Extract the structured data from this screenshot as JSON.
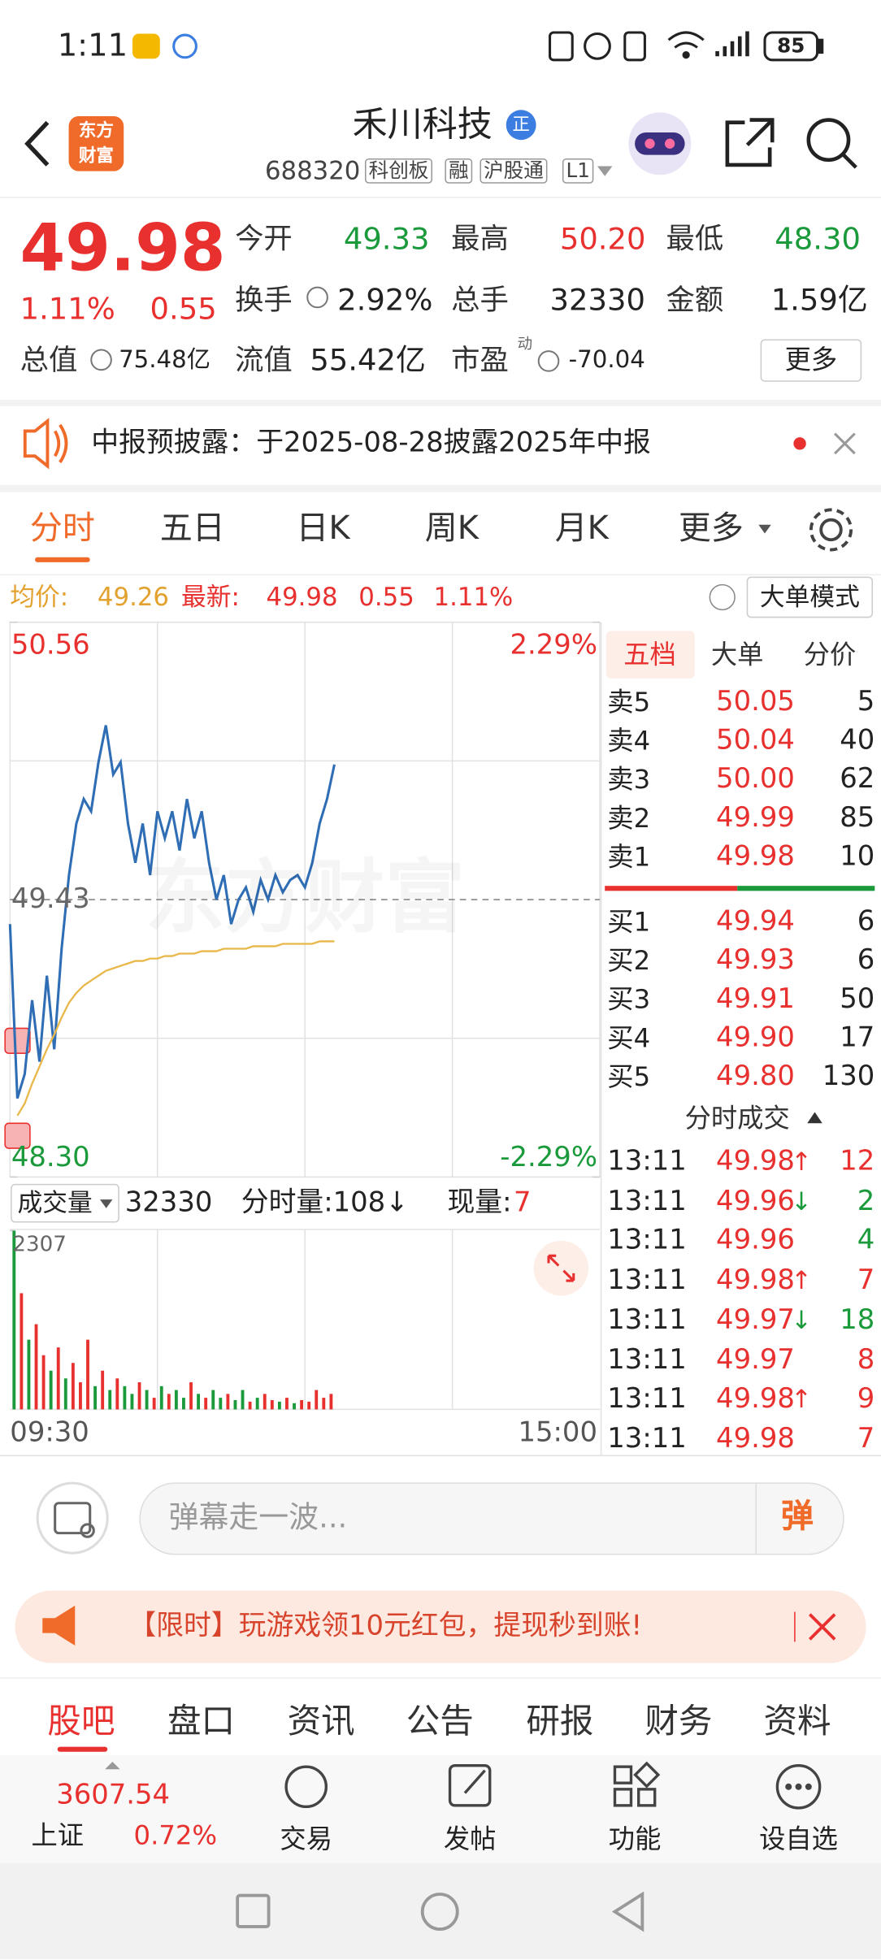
{
  "status_bar": {
    "time": "1:11",
    "battery": "85"
  },
  "header": {
    "logo": [
      "东方",
      "财富"
    ],
    "title": "禾川科技",
    "badge": "正",
    "code": "688320",
    "tags": [
      "科创板",
      "融",
      "沪股通",
      "L1"
    ]
  },
  "quote": {
    "price": "49.98",
    "change_pct": "1.11%",
    "change": "0.55",
    "open": {
      "label": "今开",
      "value": "49.33"
    },
    "high": {
      "label": "最高",
      "value": "50.20"
    },
    "low": {
      "label": "最低",
      "value": "48.30"
    },
    "turnover": {
      "label": "换手",
      "value": "2.92%"
    },
    "volume": {
      "label": "总手",
      "value": "32330"
    },
    "amount": {
      "label": "金额",
      "value": "1.59亿"
    },
    "market_cap": {
      "label": "总值",
      "value": "75.48亿"
    },
    "float_cap": {
      "label": "流值",
      "value": "55.42亿"
    },
    "pe": {
      "label": "市盈",
      "sup": "动",
      "value": "-70.04"
    },
    "more": "更多"
  },
  "notice": {
    "text": "中报预披露：于2025-08-28披露2025年中报"
  },
  "tabs": [
    "分时",
    "五日",
    "日K",
    "周K",
    "月K",
    "更多"
  ],
  "info_row": {
    "avg_label": "均价:",
    "avg": "49.26",
    "latest_label": "最新:",
    "latest": "49.98",
    "change": "0.55",
    "change_pct": "1.11%",
    "mode_button": "大单模式"
  },
  "intraday": {
    "type": "line",
    "watermark": "东方财富",
    "ylim": [
      48.3,
      50.56
    ],
    "yticks": [
      50.56,
      49.43,
      {
        "value": 48.3,
        "label": "48.30"
      }
    ],
    "y2lim": [
      -2.29,
      2.29
    ],
    "y2ticks": [
      {
        "value": 2.29,
        "label": "2.29%"
      },
      {
        "value": -2.29,
        "label": "-2.29%"
      }
    ],
    "x_labels": [
      "09:30",
      "15:00"
    ],
    "series": [
      {
        "color": "#2f6db5",
        "values": [
          49.33,
          48.62,
          48.72,
          49.02,
          48.77,
          49.12,
          48.82,
          49.23,
          49.53,
          49.74,
          49.84,
          49.79,
          49.99,
          50.14,
          49.94,
          49.99,
          49.74,
          49.58,
          49.74,
          49.53,
          49.79,
          49.68,
          49.79,
          49.63,
          49.84,
          49.68,
          49.79,
          49.58,
          49.43,
          49.53,
          49.33,
          49.43,
          49.48,
          49.38,
          49.51,
          49.43,
          49.53,
          49.46,
          49.51,
          49.53,
          49.48,
          49.58,
          49.74,
          49.84,
          49.98
        ]
      },
      {
        "color": "#e8b84a",
        "values": [
          null,
          48.55,
          48.6,
          48.68,
          48.75,
          48.82,
          48.88,
          48.95,
          49.01,
          49.05,
          49.08,
          49.1,
          49.12,
          49.14,
          49.15,
          49.16,
          49.17,
          49.18,
          49.18,
          49.19,
          49.19,
          49.2,
          49.2,
          49.21,
          49.21,
          49.21,
          49.22,
          49.22,
          49.22,
          49.23,
          49.23,
          49.23,
          49.23,
          49.24,
          49.24,
          49.24,
          49.24,
          49.25,
          49.25,
          49.25,
          49.25,
          49.25,
          49.26,
          49.26,
          49.26
        ]
      }
    ]
  },
  "volume_panel": {
    "label": "成交量",
    "total": "32330",
    "minute_vol": "分时量:108↓",
    "current_label": "现量:",
    "current": "7",
    "ylim": [
      0,
      2307
    ],
    "yticks": [
      2307
    ],
    "values": [
      2307,
      1500,
      900,
      1100,
      700,
      500,
      800,
      400,
      600,
      350,
      900,
      300,
      500,
      250,
      400,
      300,
      200,
      350,
      250,
      150,
      300,
      200,
      250,
      150,
      350,
      200,
      150,
      250,
      150,
      200,
      120,
      250,
      100,
      150,
      200,
      120,
      100,
      150,
      80,
      120,
      100,
      250,
      150,
      200
    ],
    "colors": [
      "#1a9a3a",
      "#e8302f",
      "#1a9a3a",
      "#e8302f",
      "#e8302f",
      "#1a9a3a",
      "#e8302f",
      "#1a9a3a",
      "#e8302f",
      "#e8302f",
      "#e8302f",
      "#1a9a3a",
      "#e8302f",
      "#1a9a3a",
      "#e8302f",
      "#1a9a3a",
      "#1a9a3a",
      "#e8302f",
      "#1a9a3a",
      "#e8302f",
      "#1a9a3a",
      "#e8302f",
      "#1a9a3a",
      "#1a9a3a",
      "#e8302f",
      "#1a9a3a",
      "#e8302f",
      "#1a9a3a",
      "#1a9a3a",
      "#e8302f",
      "#1a9a3a",
      "#1a9a3a",
      "#e8302f",
      "#1a9a3a",
      "#e8302f",
      "#e8302f",
      "#1a9a3a",
      "#e8302f",
      "#1a9a3a",
      "#e8302f",
      "#e8302f",
      "#e8302f",
      "#e8302f",
      "#e8302f"
    ]
  },
  "order_book": {
    "tabs": [
      "五档",
      "大单",
      "分价"
    ],
    "asks": [
      {
        "label": "卖5",
        "price": "50.05",
        "vol": "5"
      },
      {
        "label": "卖4",
        "price": "50.04",
        "vol": "40"
      },
      {
        "label": "卖3",
        "price": "50.00",
        "vol": "62"
      },
      {
        "label": "卖2",
        "price": "49.99",
        "vol": "85"
      },
      {
        "label": "卖1",
        "price": "49.98",
        "vol": "10"
      }
    ],
    "bids": [
      {
        "label": "买1",
        "price": "49.94",
        "vol": "6"
      },
      {
        "label": "买2",
        "price": "49.93",
        "vol": "6"
      },
      {
        "label": "买3",
        "price": "49.91",
        "vol": "50"
      },
      {
        "label": "买4",
        "price": "49.90",
        "vol": "17"
      },
      {
        "label": "买5",
        "price": "49.80",
        "vol": "130"
      }
    ],
    "trades_title": "分时成交",
    "trades": [
      {
        "time": "13:11",
        "price": "49.98",
        "arrow": "↑",
        "vol": "12",
        "dir": "up"
      },
      {
        "time": "13:11",
        "price": "49.96",
        "arrow": "↓",
        "vol": "2",
        "dir": "down"
      },
      {
        "time": "13:11",
        "price": "49.96",
        "arrow": "",
        "vol": "4",
        "dir": "down"
      },
      {
        "time": "13:11",
        "price": "49.98",
        "arrow": "↑",
        "vol": "7",
        "dir": "up"
      },
      {
        "time": "13:11",
        "price": "49.97",
        "arrow": "↓",
        "vol": "18",
        "dir": "down"
      },
      {
        "time": "13:11",
        "price": "49.97",
        "arrow": "",
        "vol": "8",
        "dir": "up"
      },
      {
        "time": "13:11",
        "price": "49.98",
        "arrow": "↑",
        "vol": "9",
        "dir": "up"
      },
      {
        "time": "13:11",
        "price": "49.98",
        "arrow": "",
        "vol": "7",
        "dir": "up"
      }
    ]
  },
  "comment": {
    "placeholder": "弹幕走一波...",
    "button": "弹"
  },
  "banner": {
    "text": "【限时】玩游戏领10元红包，提现秒到账!"
  },
  "bottom_tabs": [
    "股吧",
    "盘口",
    "资讯",
    "公告",
    "研报",
    "财务",
    "资料"
  ],
  "index": {
    "value": "3607.54",
    "name": "上证",
    "change_pct": "0.72%"
  },
  "nav": [
    "交易",
    "发帖",
    "功能",
    "设自选"
  ]
}
